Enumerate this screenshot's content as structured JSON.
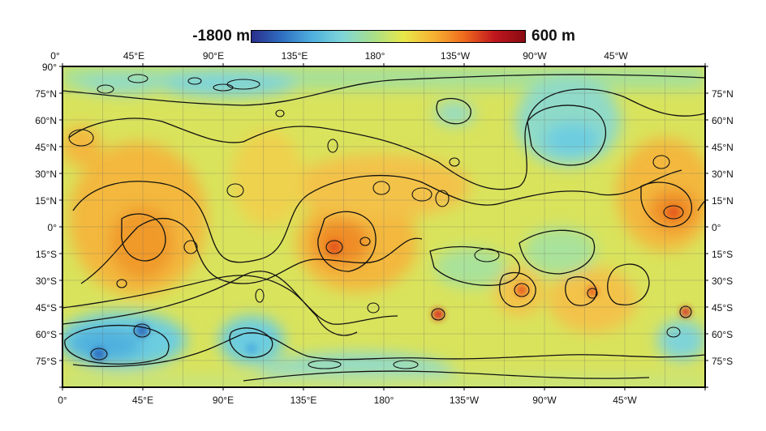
{
  "colorbar": {
    "min_label": "-1800 m",
    "max_label": "600 m",
    "colors": [
      "#2a2e8c",
      "#2f6fc2",
      "#4fb0de",
      "#7fd6d8",
      "#a8e08a",
      "#e8e84a",
      "#f7b233",
      "#ef6a1e",
      "#c0161e",
      "#8a0b12"
    ]
  },
  "top_lon_labels": [
    "0°",
    "45°E",
    "90°E",
    "135°E",
    "180°",
    "135°W",
    "90°W",
    "45°W"
  ],
  "bottom_lon_labels": [
    "0°",
    "45°E",
    "90°E",
    "135°E",
    "180°",
    "135°W",
    "90°W",
    "45°W"
  ],
  "left_lat_labels": [
    "90°",
    "75°N",
    "60°N",
    "45°N",
    "30°N",
    "15°N",
    "0°",
    "15°S",
    "30°S",
    "45°S",
    "60°S",
    "75°S"
  ],
  "right_lat_labels": [
    "75°N",
    "60°N",
    "45°N",
    "30°N",
    "15°N",
    "0°",
    "15°S",
    "30°S",
    "45°S",
    "60°S",
    "75°S"
  ]
}
